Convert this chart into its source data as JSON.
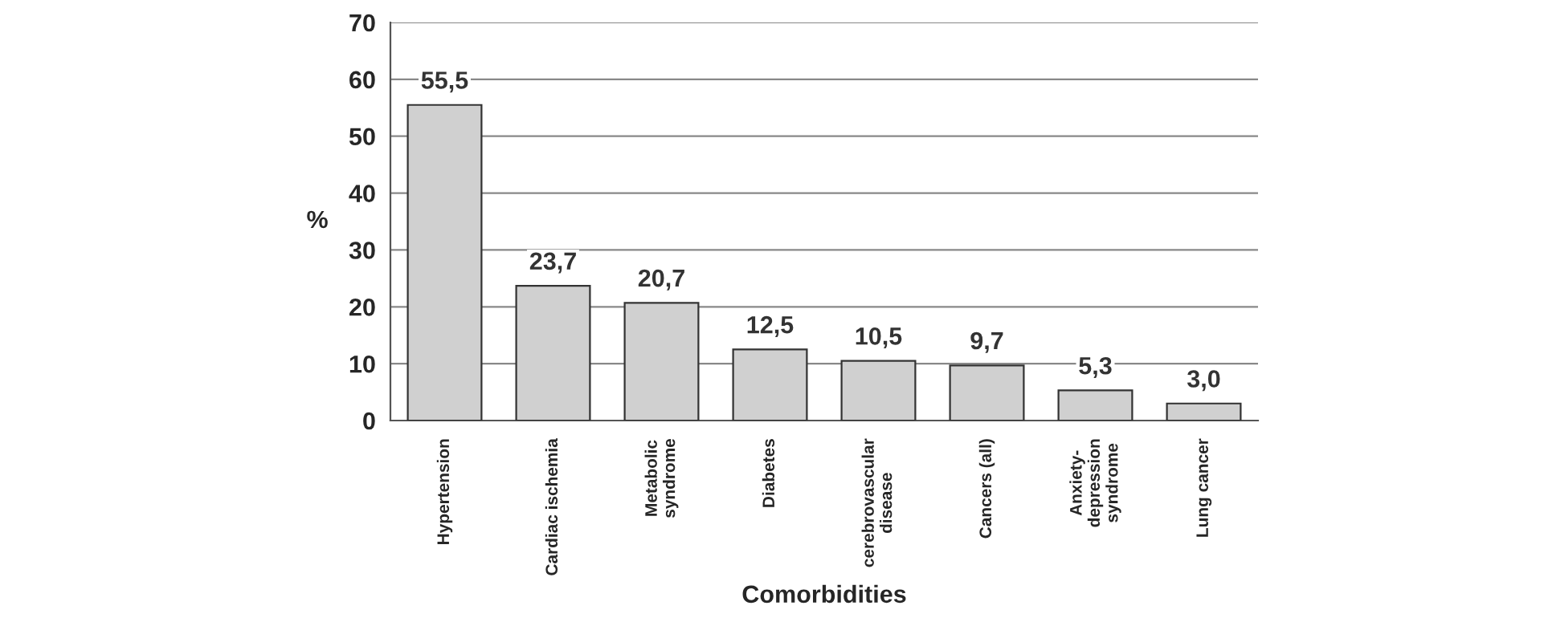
{
  "chart_data": {
    "type": "bar",
    "categories": [
      "Hypertension",
      "Cardiac ischemia",
      "Metabolic\nsyndrome",
      "Diabetes",
      "cerebrovascular\ndisease",
      "Cancers (all)",
      "Anxiety-\ndepression\nsyndrome",
      "Lung cancer"
    ],
    "values": [
      55.5,
      23.7,
      20.7,
      12.5,
      10.5,
      9.7,
      5.3,
      3.0
    ],
    "value_labels": [
      "55,5",
      "23,7",
      "20,7",
      "12,5",
      "10,5",
      "9,7",
      "5,3",
      "3,0"
    ],
    "color": "#d0d0d0",
    "ylim": [
      0,
      70
    ],
    "yticks": [
      0,
      10,
      20,
      30,
      40,
      50,
      60,
      70
    ],
    "xlabel": "Comorbidities",
    "ylabel": "%",
    "grid": "y",
    "legend": false
  }
}
